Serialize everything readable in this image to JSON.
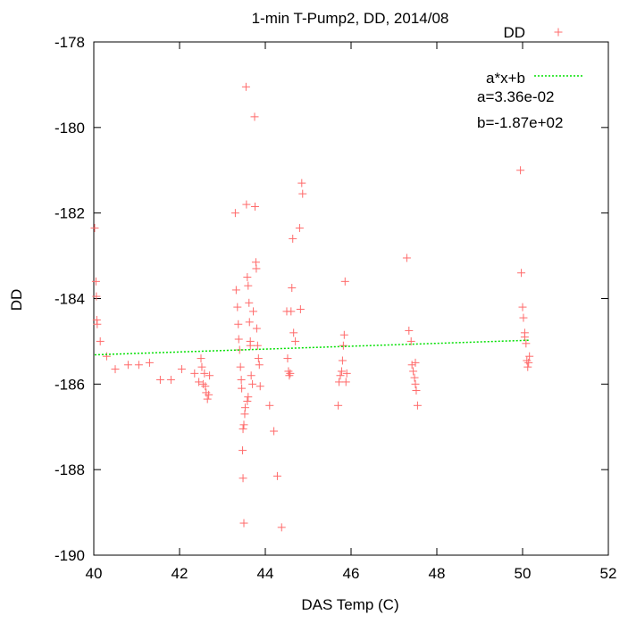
{
  "chart_data": {
    "type": "scatter",
    "title": "1-min T-Pump2, DD, 2014/08",
    "xlabel": "DAS Temp (C)",
    "ylabel": "DD",
    "xlim": [
      40,
      52
    ],
    "ylim": [
      -190,
      -178
    ],
    "xticks": [
      "40",
      "42",
      "44",
      "46",
      "48",
      "50",
      "52"
    ],
    "yticks": [
      "-178",
      "-180",
      "-182",
      "-184",
      "-186",
      "-188",
      "-190"
    ],
    "grid": false,
    "legend_position": "top-right",
    "legend": {
      "points_label": "DD",
      "fit_label": "a*x+b",
      "a_text": "a=3.36e-02",
      "b_text": "b=-1.87e+02"
    },
    "colors": {
      "points": "#ff6a6a",
      "fit": "#00e000"
    },
    "fit": {
      "a": 0.0336,
      "b": -186.66
    },
    "series": [
      {
        "name": "DD",
        "points": [
          [
            40.02,
            -182.35
          ],
          [
            40.05,
            -183.6
          ],
          [
            40.06,
            -183.95
          ],
          [
            40.07,
            -184.5
          ],
          [
            40.08,
            -184.6
          ],
          [
            40.15,
            -185.0
          ],
          [
            40.3,
            -185.35
          ],
          [
            40.5,
            -185.65
          ],
          [
            40.8,
            -185.55
          ],
          [
            41.05,
            -185.55
          ],
          [
            41.3,
            -185.5
          ],
          [
            41.55,
            -185.9
          ],
          [
            41.8,
            -185.9
          ],
          [
            42.05,
            -185.65
          ],
          [
            42.35,
            -185.75
          ],
          [
            42.45,
            -185.95
          ],
          [
            42.5,
            -185.4
          ],
          [
            42.52,
            -185.6
          ],
          [
            42.55,
            -186.0
          ],
          [
            42.58,
            -185.75
          ],
          [
            42.6,
            -186.05
          ],
          [
            42.62,
            -186.2
          ],
          [
            42.65,
            -186.35
          ],
          [
            42.68,
            -186.25
          ],
          [
            42.7,
            -185.8
          ],
          [
            43.3,
            -182.0
          ],
          [
            43.32,
            -183.8
          ],
          [
            43.35,
            -184.2
          ],
          [
            43.37,
            -184.6
          ],
          [
            43.38,
            -184.95
          ],
          [
            43.4,
            -185.2
          ],
          [
            43.42,
            -185.6
          ],
          [
            43.44,
            -185.9
          ],
          [
            43.45,
            -186.1
          ],
          [
            43.47,
            -187.55
          ],
          [
            43.48,
            -188.2
          ],
          [
            43.5,
            -189.25
          ],
          [
            43.52,
            -186.7
          ],
          [
            43.53,
            -186.55
          ],
          [
            43.55,
            -179.05
          ],
          [
            43.56,
            -181.8
          ],
          [
            43.58,
            -183.5
          ],
          [
            43.6,
            -183.7
          ],
          [
            43.62,
            -184.1
          ],
          [
            43.63,
            -184.55
          ],
          [
            43.65,
            -185.0
          ],
          [
            43.67,
            -185.8
          ],
          [
            43.7,
            -186.0
          ],
          [
            43.72,
            -184.3
          ],
          [
            43.75,
            -179.75
          ],
          [
            43.76,
            -181.85
          ],
          [
            43.78,
            -183.15
          ],
          [
            43.79,
            -183.3
          ],
          [
            43.8,
            -184.7
          ],
          [
            43.82,
            -185.1
          ],
          [
            43.84,
            -185.4
          ],
          [
            43.86,
            -185.55
          ],
          [
            43.88,
            -186.05
          ],
          [
            43.5,
            -186.95
          ],
          [
            43.48,
            -187.05
          ],
          [
            43.58,
            -186.4
          ],
          [
            43.6,
            -186.3
          ],
          [
            43.65,
            -185.1
          ],
          [
            44.1,
            -186.5
          ],
          [
            44.2,
            -187.1
          ],
          [
            44.28,
            -188.15
          ],
          [
            44.38,
            -189.35
          ],
          [
            44.5,
            -184.3
          ],
          [
            44.52,
            -185.4
          ],
          [
            44.54,
            -185.7
          ],
          [
            44.56,
            -185.8
          ],
          [
            44.58,
            -185.75
          ],
          [
            44.6,
            -184.3
          ],
          [
            44.62,
            -183.75
          ],
          [
            44.64,
            -182.6
          ],
          [
            44.66,
            -184.8
          ],
          [
            44.7,
            -185.0
          ],
          [
            44.8,
            -182.35
          ],
          [
            44.85,
            -181.3
          ],
          [
            44.87,
            -181.55
          ],
          [
            44.82,
            -184.25
          ],
          [
            45.7,
            -186.5
          ],
          [
            45.72,
            -185.95
          ],
          [
            45.75,
            -185.8
          ],
          [
            45.78,
            -185.7
          ],
          [
            45.8,
            -185.45
          ],
          [
            45.82,
            -185.1
          ],
          [
            45.84,
            -184.85
          ],
          [
            45.86,
            -183.6
          ],
          [
            45.88,
            -185.95
          ],
          [
            45.9,
            -185.75
          ],
          [
            47.3,
            -183.05
          ],
          [
            47.35,
            -184.75
          ],
          [
            47.4,
            -185.0
          ],
          [
            47.42,
            -185.55
          ],
          [
            47.45,
            -185.7
          ],
          [
            47.48,
            -185.85
          ],
          [
            47.5,
            -186.0
          ],
          [
            47.52,
            -186.15
          ],
          [
            47.55,
            -186.5
          ],
          [
            47.5,
            -185.5
          ],
          [
            49.95,
            -181.0
          ],
          [
            49.97,
            -183.4
          ],
          [
            50.0,
            -184.2
          ],
          [
            50.02,
            -184.45
          ],
          [
            50.05,
            -184.8
          ],
          [
            50.08,
            -185.05
          ],
          [
            50.1,
            -185.45
          ],
          [
            50.12,
            -185.6
          ],
          [
            50.14,
            -185.5
          ],
          [
            50.16,
            -185.35
          ],
          [
            50.05,
            -184.9
          ]
        ]
      }
    ]
  }
}
